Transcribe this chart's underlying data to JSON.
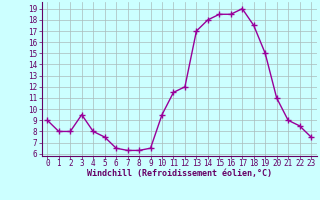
{
  "x": [
    0,
    1,
    2,
    3,
    4,
    5,
    6,
    7,
    8,
    9,
    10,
    11,
    12,
    13,
    14,
    15,
    16,
    17,
    18,
    19,
    20,
    21,
    22,
    23
  ],
  "y": [
    9,
    8,
    8,
    9.5,
    8,
    7.5,
    6.5,
    6.3,
    6.3,
    6.5,
    9.5,
    11.5,
    12,
    17,
    18,
    18.5,
    18.5,
    19,
    17.5,
    15,
    11,
    9,
    8.5,
    7.5
  ],
  "line_color": "#990099",
  "marker": "+",
  "marker_size": 4,
  "marker_lw": 1.0,
  "background_color": "#ccffff",
  "grid_color": "#aabbbb",
  "xlabel": "Windchill (Refroidissement éolien,°C)",
  "xlabel_color": "#660066",
  "tick_color": "#660066",
  "axis_color": "#660066",
  "ylim": [
    5.8,
    19.6
  ],
  "xlim": [
    -0.5,
    23.5
  ],
  "yticks": [
    6,
    7,
    8,
    9,
    10,
    11,
    12,
    13,
    14,
    15,
    16,
    17,
    18,
    19
  ],
  "xticks": [
    0,
    1,
    2,
    3,
    4,
    5,
    6,
    7,
    8,
    9,
    10,
    11,
    12,
    13,
    14,
    15,
    16,
    17,
    18,
    19,
    20,
    21,
    22,
    23
  ],
  "line_width": 1.0,
  "tick_fontsize": 5.5,
  "xlabel_fontsize": 6.0
}
